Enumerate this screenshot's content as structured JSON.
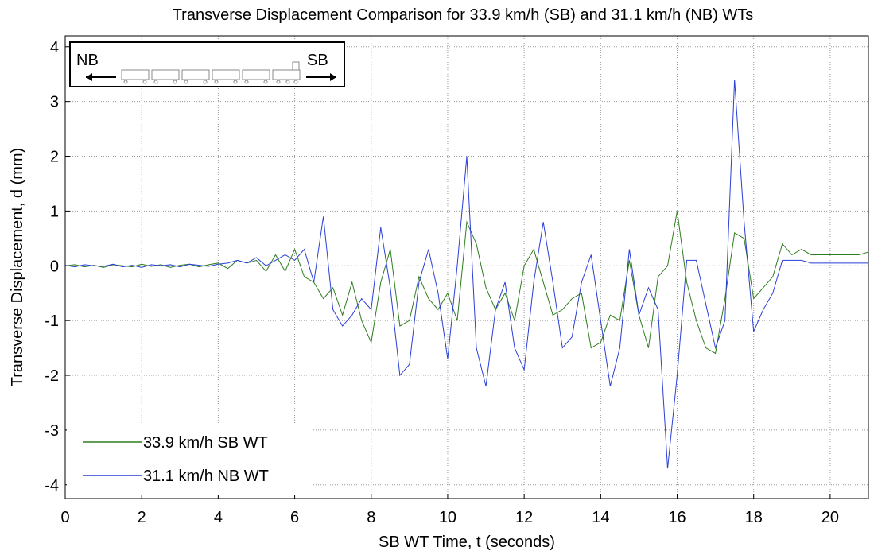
{
  "chart_data": {
    "type": "line",
    "title": "Transverse Displacement Comparison for 33.9 km/h (SB) and 31.1 km/h (NB) WTs",
    "x_label": "SB WT Time, t (seconds)",
    "y_label": "Transverse Displacement, d (mm)",
    "inset_labels": [
      "NB",
      "SB"
    ],
    "x": [
      0,
      0.25,
      0.5,
      0.75,
      1,
      1.25,
      1.5,
      1.75,
      2,
      2.25,
      2.5,
      2.75,
      3,
      3.25,
      3.5,
      3.75,
      4,
      4.25,
      4.5,
      4.75,
      5,
      5.25,
      5.5,
      5.75,
      6,
      6.25,
      6.5,
      6.75,
      7,
      7.25,
      7.5,
      7.75,
      8,
      8.25,
      8.5,
      8.75,
      9,
      9.25,
      9.5,
      9.75,
      10,
      10.25,
      10.5,
      10.75,
      11,
      11.25,
      11.5,
      11.75,
      12,
      12.25,
      12.5,
      12.75,
      13,
      13.25,
      13.5,
      13.75,
      14,
      14.25,
      14.5,
      14.75,
      15,
      15.25,
      15.5,
      15.75,
      16,
      16.25,
      16.5,
      16.75,
      17,
      17.25,
      17.5,
      17.75,
      18,
      18.25,
      18.5,
      18.75,
      19,
      19.25,
      19.5,
      19.75,
      20,
      20.25,
      20.5,
      20.75,
      21
    ],
    "series": [
      {
        "name": "33.9 km/h SB WT",
        "color": "#2e7d1e",
        "values": [
          0,
          0.02,
          -0.02,
          0.01,
          -0.03,
          0.02,
          0,
          -0.02,
          0.03,
          -0.01,
          0.02,
          -0.03,
          0.01,
          0.03,
          -0.02,
          0.02,
          0.05,
          -0.05,
          0.1,
          0.05,
          0.1,
          -0.1,
          0.2,
          -0.1,
          0.3,
          -0.2,
          -0.3,
          -0.6,
          -0.4,
          -0.9,
          -0.3,
          -1.0,
          -1.4,
          -0.3,
          0.3,
          -1.1,
          -1.0,
          -0.2,
          -0.6,
          -0.8,
          -0.5,
          -1.0,
          0.8,
          0.4,
          -0.4,
          -0.8,
          -0.5,
          -1.0,
          0.0,
          0.3,
          -0.3,
          -0.9,
          -0.8,
          -0.6,
          -0.5,
          -1.5,
          -1.4,
          -0.9,
          -1.0,
          0.1,
          -0.9,
          -1.5,
          -0.2,
          0.0,
          1.0,
          -0.3,
          -1.0,
          -1.5,
          -1.6,
          -0.6,
          0.6,
          0.5,
          -0.6,
          -0.4,
          -0.2,
          0.4,
          0.2,
          0.3,
          0.2,
          0.2,
          0.2,
          0.2,
          0.2,
          0.2,
          0.25
        ]
      },
      {
        "name": "31.1 km/h NB WT",
        "color": "#2a3fd6",
        "values": [
          0.01,
          -0.02,
          0.02,
          0,
          -0.01,
          0.03,
          -0.02,
          0.01,
          -0.03,
          0.02,
          0,
          0.02,
          -0.02,
          0.03,
          0.01,
          -0.01,
          0.03,
          0.05,
          0.1,
          0.05,
          0.15,
          0.0,
          0.1,
          0.2,
          0.1,
          0.3,
          -0.3,
          0.9,
          -0.8,
          -1.1,
          -0.9,
          -0.6,
          -0.8,
          0.7,
          -0.4,
          -2.0,
          -1.8,
          -0.3,
          0.3,
          -0.5,
          -1.7,
          0.0,
          2.0,
          -1.5,
          -2.2,
          -0.8,
          -0.3,
          -1.5,
          -1.9,
          -0.3,
          0.8,
          -0.3,
          -1.5,
          -1.3,
          -0.3,
          0.2,
          -1.0,
          -2.2,
          -1.5,
          0.3,
          -0.9,
          -0.4,
          -0.8,
          -3.7,
          -2.0,
          0.1,
          0.1,
          -0.7,
          -1.5,
          -1.0,
          3.4,
          0.8,
          -1.2,
          -0.8,
          -0.5,
          0.1,
          0.1,
          0.1,
          0.05,
          0.05,
          0.05,
          0.05,
          0.05,
          0.05,
          0.05
        ]
      }
    ],
    "xlim": [
      0,
      21
    ],
    "ylim": [
      -4.25,
      4.2
    ],
    "xticks": [
      0,
      2,
      4,
      6,
      8,
      10,
      12,
      14,
      16,
      18,
      20
    ],
    "yticks": [
      -4,
      -3,
      -2,
      -1,
      0,
      1,
      2,
      3,
      4
    ],
    "grid": true,
    "legend": "lower left"
  }
}
